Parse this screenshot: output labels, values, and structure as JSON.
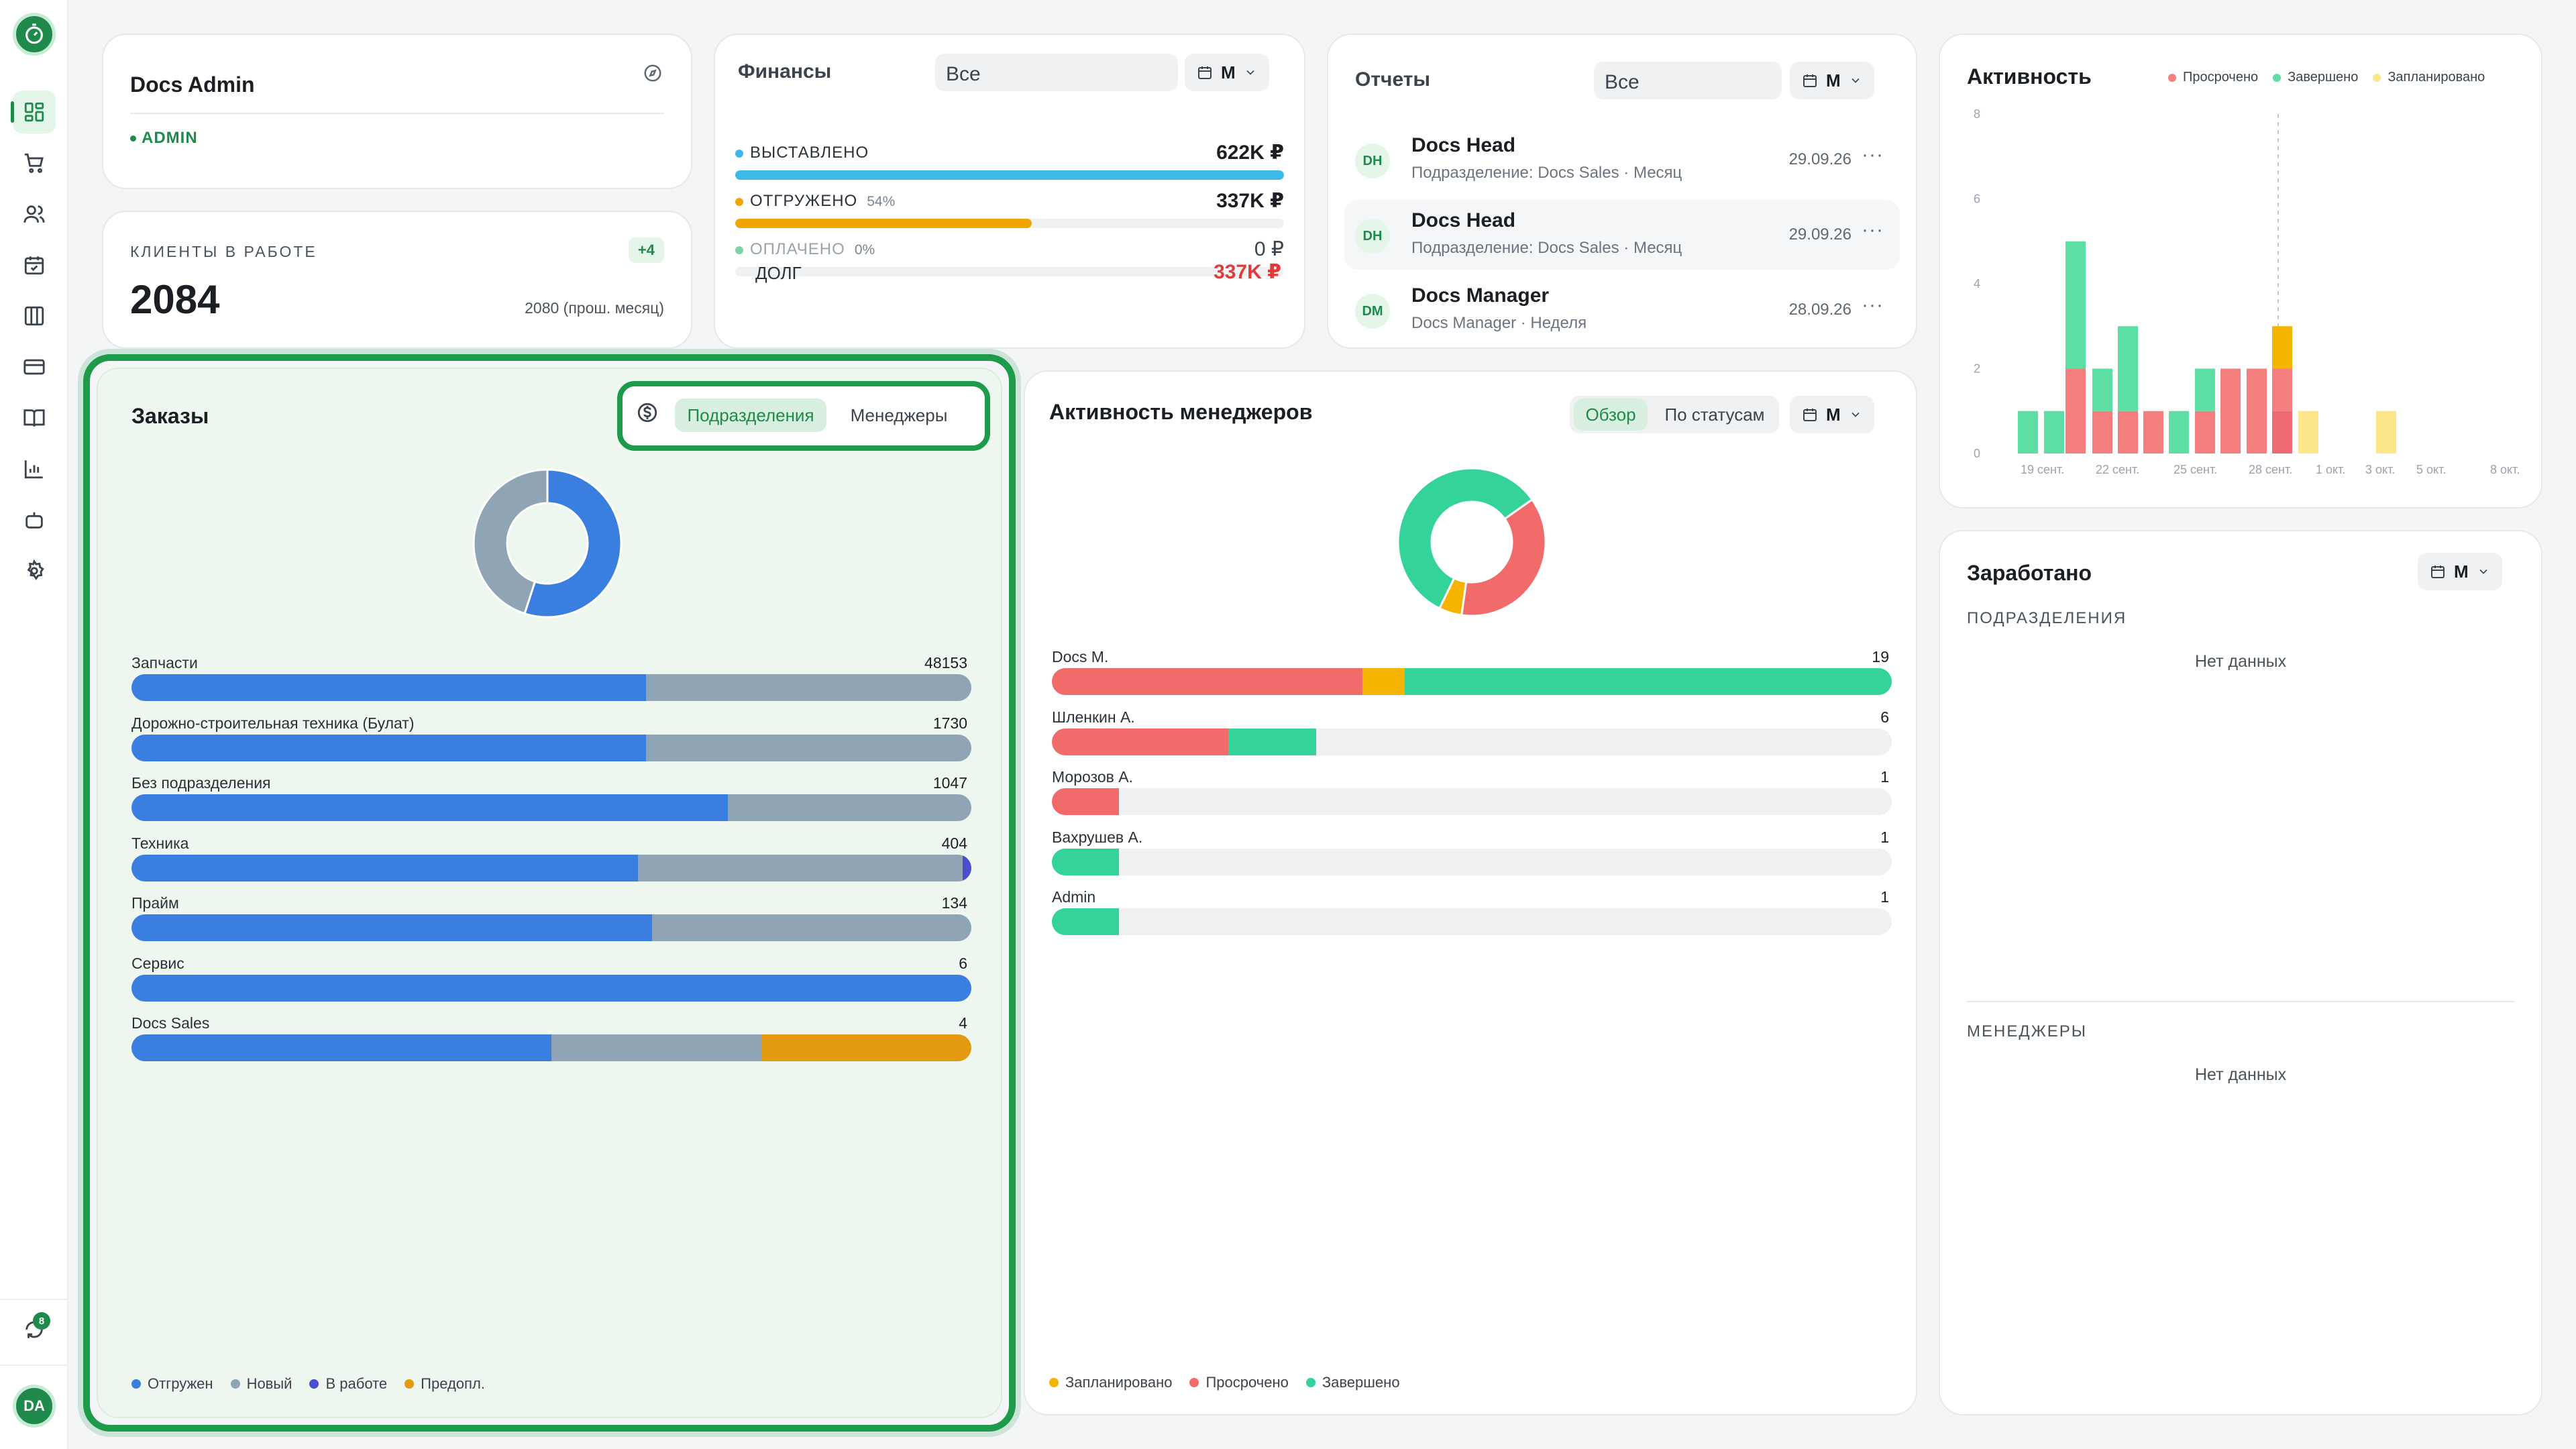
{
  "sidebar": {
    "sync_count": "8",
    "avatar": "DA"
  },
  "profile": {
    "name": "Docs Admin",
    "role": "ADMIN"
  },
  "clients": {
    "label": "КЛИЕНТЫ В РАБОТЕ",
    "badge": "+4",
    "value": "2084",
    "prev": "2080 (прош. месяц)"
  },
  "finance": {
    "title": "Финансы",
    "filter": "Все",
    "period": "М",
    "rows": [
      {
        "label": "ВЫСТАВЛЕНО",
        "pct": "",
        "value": "622K ₽",
        "fill": 1.0,
        "color": "#3db8ea"
      },
      {
        "label": "ОТГРУЖЕНО",
        "pct": "54%",
        "value": "337K ₽",
        "fill": 0.54,
        "color": "#f0a500"
      },
      {
        "label": "ОПЛАЧЕНО",
        "pct": "0%",
        "value": "0 ₽",
        "fill": 0,
        "color": "#7ed3a5"
      }
    ],
    "debt_label": "ДОЛГ",
    "debt_value": "337K ₽"
  },
  "reports": {
    "title": "Отчеты",
    "filter": "Все",
    "period": "М",
    "items": [
      {
        "initials": "DH",
        "name": "Docs Head",
        "sub": "Подразделение: Docs Sales · Месяц",
        "date": "29.09.26"
      },
      {
        "initials": "DH",
        "name": "Docs Head",
        "sub": "Подразделение: Docs Sales · Месяц",
        "date": "29.09.26"
      },
      {
        "initials": "DM",
        "name": "Docs Manager",
        "sub": "Docs Manager · Неделя",
        "date": "28.09.26"
      }
    ]
  },
  "activity": {
    "title": "Активность",
    "legend": [
      "Просрочено",
      "Завершено",
      "Запланировано"
    ],
    "colors": {
      "overdue": "#f57f7f",
      "done": "#5cdea4",
      "planned": "#fde58a"
    },
    "y_ticks": [
      "8",
      "6",
      "4",
      "2",
      "0"
    ],
    "x_labels": [
      "19 сент.",
      "22 сент.",
      "25 сент.",
      "28 сент.",
      "1 окт.",
      "3 окт.",
      "5 окт.",
      "8 окт."
    ]
  },
  "earned": {
    "title": "Заработано",
    "period": "М",
    "section1": "ПОДРАЗДЕЛЕНИЯ",
    "empty1": "Нет данных",
    "section2": "МЕНЕДЖЕРЫ",
    "empty2": "Нет данных"
  },
  "orders": {
    "title": "Заказы",
    "tabs": [
      "Подразделения",
      "Менеджеры"
    ],
    "donut": [
      {
        "color": "#3a7fe0",
        "share": 0.55
      },
      {
        "color": "#8fa4b4",
        "share": 0.45
      }
    ],
    "departments": [
      {
        "label": "Запчасти",
        "value": "48153",
        "segments": [
          0.613,
          0.387,
          0,
          0
        ]
      },
      {
        "label": "Дорожно-строительная техника (Булат)",
        "value": "1730",
        "segments": [
          0.613,
          0.387,
          0,
          0
        ]
      },
      {
        "label": "Без подразделения",
        "value": "1047",
        "segments": [
          0.71,
          0.29,
          0,
          0
        ]
      },
      {
        "label": "Техника",
        "value": "404",
        "segments": [
          0.603,
          0.387,
          0.01,
          0
        ]
      },
      {
        "label": "Прайм",
        "value": "134",
        "segments": [
          0.62,
          0.38,
          0,
          0
        ]
      },
      {
        "label": "Сервис",
        "value": "6",
        "segments": [
          1.0,
          0,
          0,
          0
        ]
      },
      {
        "label": "Docs Sales",
        "value": "4",
        "segments": [
          0.5,
          0.25,
          0,
          0.25
        ]
      }
    ],
    "seg_colors": [
      "#3a7fe0",
      "#8fa4b4",
      "#4a4fcf",
      "#e39a10"
    ],
    "legend": [
      "Отгружен",
      "Новый",
      "В работе",
      "Предопл."
    ]
  },
  "managers": {
    "title": "Активность менеджеров",
    "tabs": [
      "Обзор",
      "По статусам"
    ],
    "period": "М",
    "donut": [
      {
        "color": "#f26b6b",
        "share": 0.37
      },
      {
        "color": "#f4b400",
        "share": 0.05
      },
      {
        "color": "#34d399",
        "share": 0.58
      }
    ],
    "rows": [
      {
        "label": "Docs M.",
        "value": "19",
        "segments": [
          {
            "c": "#f26b6b",
            "w": 0.37
          },
          {
            "c": "#f4b400",
            "w": 0.05
          },
          {
            "c": "#34d399",
            "w": 0.58
          }
        ]
      },
      {
        "label": "Шленкин А.",
        "value": "6",
        "segments": [
          {
            "c": "#f26b6b",
            "w": 0.21
          },
          {
            "c": "#34d399",
            "w": 0.105
          }
        ]
      },
      {
        "label": "Морозов А.",
        "value": "1",
        "segments": [
          {
            "c": "#f26b6b",
            "w": 0.08
          }
        ]
      },
      {
        "label": "Вахрушев А.",
        "value": "1",
        "segments": [
          {
            "c": "#34d399",
            "w": 0.08
          }
        ]
      },
      {
        "label": "Admin",
        "value": "1",
        "segments": [
          {
            "c": "#34d399",
            "w": 0.08
          }
        ]
      }
    ],
    "legend": [
      "Запланировано",
      "Просрочено",
      "Завершено"
    ]
  }
}
